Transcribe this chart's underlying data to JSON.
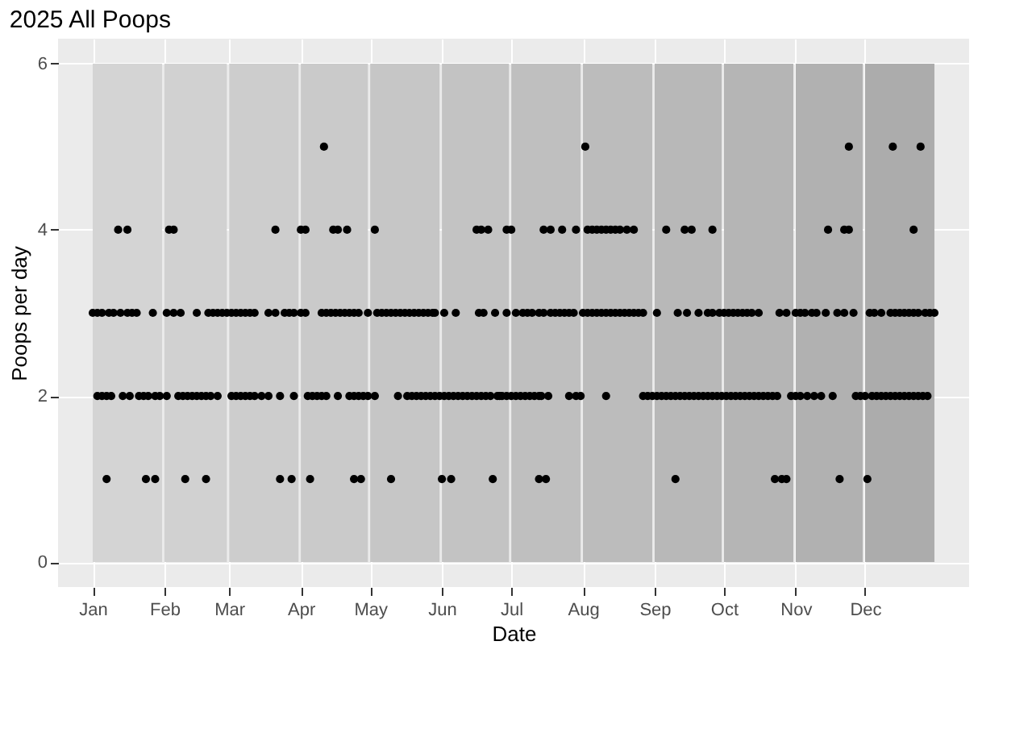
{
  "chart_data": {
    "type": "scatter",
    "title": "2025 All Poops",
    "xlabel": "Date",
    "ylabel": "Poops per day",
    "xlim": [
      "2024-12-17",
      "2026-01-15"
    ],
    "ylim": [
      -0.3,
      6.3
    ],
    "yticks": [
      0,
      2,
      4,
      6
    ],
    "xticks": [
      {
        "value": "2025-01-01",
        "label": "Jan"
      },
      {
        "value": "2025-02-01",
        "label": "Feb"
      },
      {
        "value": "2025-03-01",
        "label": "Mar"
      },
      {
        "value": "2025-04-01",
        "label": "Apr"
      },
      {
        "value": "2025-05-01",
        "label": "May"
      },
      {
        "value": "2025-06-01",
        "label": "Jun"
      },
      {
        "value": "2025-07-01",
        "label": "Jul"
      },
      {
        "value": "2025-08-01",
        "label": "Aug"
      },
      {
        "value": "2025-09-01",
        "label": "Sep"
      },
      {
        "value": "2025-10-01",
        "label": "Oct"
      },
      {
        "value": "2025-11-01",
        "label": "Nov"
      },
      {
        "value": "2025-12-01",
        "label": "Dec"
      }
    ],
    "grid": true,
    "marker": "circle",
    "bands": [
      {
        "axis": "x",
        "from": "2025-01-01",
        "to": "2025-01-31",
        "color": "#d4d4d4"
      },
      {
        "axis": "x",
        "from": "2025-02-01",
        "to": "2025-02-28",
        "color": "#d1d1d1"
      },
      {
        "axis": "x",
        "from": "2025-03-01",
        "to": "2025-03-31",
        "color": "#cdcdcd"
      },
      {
        "axis": "x",
        "from": "2025-04-01",
        "to": "2025-04-30",
        "color": "#cacaca"
      },
      {
        "axis": "x",
        "from": "2025-05-01",
        "to": "2025-05-31",
        "color": "#c6c6c6"
      },
      {
        "axis": "x",
        "from": "2025-06-01",
        "to": "2025-06-30",
        "color": "#c3c3c3"
      },
      {
        "axis": "x",
        "from": "2025-07-01",
        "to": "2025-07-31",
        "color": "#bfbfbf"
      },
      {
        "axis": "x",
        "from": "2025-08-01",
        "to": "2025-08-31",
        "color": "#bcbcbc"
      },
      {
        "axis": "x",
        "from": "2025-09-01",
        "to": "2025-09-30",
        "color": "#b8b8b8"
      },
      {
        "axis": "x",
        "from": "2025-10-01",
        "to": "2025-10-31",
        "color": "#b5b5b5"
      },
      {
        "axis": "x",
        "from": "2025-11-01",
        "to": "2025-11-30",
        "color": "#b1b1b1"
      },
      {
        "axis": "x",
        "from": "2025-12-01",
        "to": "2025-12-31",
        "color": "#acacac"
      }
    ],
    "series": [
      {
        "color": "#000000",
        "x": [
          "2025-04-11",
          "2025-08-02",
          "2025-11-24",
          "2025-12-13",
          "2025-12-25"
        ],
        "values": [
          5,
          5,
          5,
          5,
          5
        ]
      },
      {
        "color": "#000000",
        "x": [
          "2025-01-12",
          "2025-01-16",
          "2025-02-03",
          "2025-02-05",
          "2025-03-21",
          "2025-04-01",
          "2025-04-03",
          "2025-04-15",
          "2025-04-17",
          "2025-04-21",
          "2025-05-03",
          "2025-06-16",
          "2025-06-18",
          "2025-06-21",
          "2025-06-29",
          "2025-07-01",
          "2025-07-15",
          "2025-07-18",
          "2025-07-23",
          "2025-07-29",
          "2025-08-03",
          "2025-08-05",
          "2025-08-07",
          "2025-08-09",
          "2025-08-11",
          "2025-08-13",
          "2025-08-15",
          "2025-08-17",
          "2025-08-20",
          "2025-08-23",
          "2025-09-06",
          "2025-09-14",
          "2025-09-17",
          "2025-09-26",
          "2025-11-15",
          "2025-11-22",
          "2025-11-24",
          "2025-12-22"
        ],
        "values": [
          4,
          4,
          4,
          4,
          4,
          4,
          4,
          4,
          4,
          4,
          4,
          4,
          4,
          4,
          4,
          4,
          4,
          4,
          4,
          4,
          4,
          4,
          4,
          4,
          4,
          4,
          4,
          4,
          4,
          4,
          4,
          4,
          4,
          4,
          4,
          4,
          4,
          4
        ]
      },
      {
        "color": "#000000",
        "x": [
          "2025-01-01",
          "2025-01-03",
          "2025-01-05",
          "2025-01-08",
          "2025-01-10",
          "2025-01-13",
          "2025-01-16",
          "2025-01-18",
          "2025-01-20",
          "2025-01-27",
          "2025-02-02",
          "2025-02-05",
          "2025-02-08",
          "2025-02-15",
          "2025-02-20",
          "2025-02-22",
          "2025-02-24",
          "2025-02-26",
          "2025-02-28",
          "2025-03-02",
          "2025-03-04",
          "2025-03-06",
          "2025-03-08",
          "2025-03-10",
          "2025-03-12",
          "2025-03-18",
          "2025-03-21",
          "2025-03-25",
          "2025-03-27",
          "2025-03-29",
          "2025-04-01",
          "2025-04-03",
          "2025-04-10",
          "2025-04-12",
          "2025-04-14",
          "2025-04-16",
          "2025-04-18",
          "2025-04-20",
          "2025-04-22",
          "2025-04-24",
          "2025-04-26",
          "2025-04-30",
          "2025-05-04",
          "2025-05-06",
          "2025-05-08",
          "2025-05-10",
          "2025-05-12",
          "2025-05-14",
          "2025-05-16",
          "2025-05-18",
          "2025-05-20",
          "2025-05-22",
          "2025-05-24",
          "2025-05-26",
          "2025-05-28",
          "2025-05-29",
          "2025-06-02",
          "2025-06-07",
          "2025-06-17",
          "2025-06-19",
          "2025-06-24",
          "2025-06-29",
          "2025-07-03",
          "2025-07-06",
          "2025-07-08",
          "2025-07-10",
          "2025-07-13",
          "2025-07-15",
          "2025-07-18",
          "2025-07-20",
          "2025-07-22",
          "2025-07-24",
          "2025-07-26",
          "2025-07-28",
          "2025-08-01",
          "2025-08-03",
          "2025-08-05",
          "2025-08-07",
          "2025-08-09",
          "2025-08-11",
          "2025-08-13",
          "2025-08-15",
          "2025-08-17",
          "2025-08-19",
          "2025-08-21",
          "2025-08-23",
          "2025-08-25",
          "2025-08-27",
          "2025-09-02",
          "2025-09-11",
          "2025-09-15",
          "2025-09-20",
          "2025-09-24",
          "2025-09-26",
          "2025-09-29",
          "2025-10-01",
          "2025-10-03",
          "2025-10-05",
          "2025-10-07",
          "2025-10-09",
          "2025-10-11",
          "2025-10-13",
          "2025-10-16",
          "2025-10-25",
          "2025-10-28",
          "2025-11-01",
          "2025-11-03",
          "2025-11-05",
          "2025-11-08",
          "2025-11-10",
          "2025-11-14",
          "2025-11-19",
          "2025-11-22",
          "2025-11-26",
          "2025-12-03",
          "2025-12-05",
          "2025-12-08",
          "2025-12-12",
          "2025-12-14",
          "2025-12-16",
          "2025-12-18",
          "2025-12-20",
          "2025-12-22",
          "2025-12-24",
          "2025-12-27",
          "2025-12-29",
          "2025-12-31"
        ],
        "values": [
          3,
          3,
          3,
          3,
          3,
          3,
          3,
          3,
          3,
          3,
          3,
          3,
          3,
          3,
          3,
          3,
          3,
          3,
          3,
          3,
          3,
          3,
          3,
          3,
          3,
          3,
          3,
          3,
          3,
          3,
          3,
          3,
          3,
          3,
          3,
          3,
          3,
          3,
          3,
          3,
          3,
          3,
          3,
          3,
          3,
          3,
          3,
          3,
          3,
          3,
          3,
          3,
          3,
          3,
          3,
          3,
          3,
          3,
          3,
          3,
          3,
          3,
          3,
          3,
          3,
          3,
          3,
          3,
          3,
          3,
          3,
          3,
          3,
          3,
          3,
          3,
          3,
          3,
          3,
          3,
          3,
          3,
          3,
          3,
          3,
          3,
          3,
          3,
          3,
          3,
          3,
          3,
          3,
          3,
          3,
          3,
          3,
          3,
          3,
          3,
          3,
          3,
          3,
          3,
          3,
          3,
          3,
          3,
          3,
          3,
          3,
          3,
          3,
          3,
          3,
          3,
          3,
          3,
          3,
          3,
          3,
          3,
          3,
          3,
          3,
          3,
          3
        ]
      },
      {
        "color": "#000000",
        "x": [
          "2025-01-03",
          "2025-01-05",
          "2025-01-07",
          "2025-01-09",
          "2025-01-14",
          "2025-01-17",
          "2025-01-21",
          "2025-01-23",
          "2025-01-25",
          "2025-01-28",
          "2025-01-30",
          "2025-02-02",
          "2025-02-07",
          "2025-02-09",
          "2025-02-11",
          "2025-02-13",
          "2025-02-15",
          "2025-02-17",
          "2025-02-19",
          "2025-02-21",
          "2025-02-24",
          "2025-03-02",
          "2025-03-04",
          "2025-03-06",
          "2025-03-08",
          "2025-03-10",
          "2025-03-12",
          "2025-03-15",
          "2025-03-18",
          "2025-03-23",
          "2025-03-29",
          "2025-04-04",
          "2025-04-06",
          "2025-04-08",
          "2025-04-10",
          "2025-04-12",
          "2025-04-17",
          "2025-04-22",
          "2025-04-24",
          "2025-04-26",
          "2025-04-28",
          "2025-04-30",
          "2025-05-03",
          "2025-05-13",
          "2025-05-17",
          "2025-05-19",
          "2025-05-21",
          "2025-05-23",
          "2025-05-25",
          "2025-05-27",
          "2025-05-29",
          "2025-05-31",
          "2025-06-02",
          "2025-06-04",
          "2025-06-06",
          "2025-06-08",
          "2025-06-10",
          "2025-06-12",
          "2025-06-14",
          "2025-06-16",
          "2025-06-18",
          "2025-06-20",
          "2025-06-22",
          "2025-06-25",
          "2025-06-26",
          "2025-06-27",
          "2025-06-29",
          "2025-07-01",
          "2025-07-03",
          "2025-07-05",
          "2025-07-07",
          "2025-07-09",
          "2025-07-11",
          "2025-07-13",
          "2025-07-14",
          "2025-07-17",
          "2025-07-26",
          "2025-07-29",
          "2025-07-31",
          "2025-08-11",
          "2025-08-27",
          "2025-08-29",
          "2025-08-31",
          "2025-09-02",
          "2025-09-04",
          "2025-09-06",
          "2025-09-08",
          "2025-09-10",
          "2025-09-12",
          "2025-09-14",
          "2025-09-16",
          "2025-09-18",
          "2025-09-20",
          "2025-09-22",
          "2025-09-24",
          "2025-09-26",
          "2025-09-28",
          "2025-09-30",
          "2025-10-02",
          "2025-10-04",
          "2025-10-06",
          "2025-10-08",
          "2025-10-10",
          "2025-10-12",
          "2025-10-14",
          "2025-10-16",
          "2025-10-18",
          "2025-10-20",
          "2025-10-22",
          "2025-10-24",
          "2025-10-30",
          "2025-11-01",
          "2025-11-03",
          "2025-11-06",
          "2025-11-09",
          "2025-11-12",
          "2025-11-17",
          "2025-11-27",
          "2025-11-29",
          "2025-12-01",
          "2025-12-04",
          "2025-12-06",
          "2025-12-08",
          "2025-12-10",
          "2025-12-12",
          "2025-12-14",
          "2025-12-16",
          "2025-12-18",
          "2025-12-20",
          "2025-12-22",
          "2025-12-24",
          "2025-12-26",
          "2025-12-28"
        ],
        "values": [
          2,
          2,
          2,
          2,
          2,
          2,
          2,
          2,
          2,
          2,
          2,
          2,
          2,
          2,
          2,
          2,
          2,
          2,
          2,
          2,
          2,
          2,
          2,
          2,
          2,
          2,
          2,
          2,
          2,
          2,
          2,
          2,
          2,
          2,
          2,
          2,
          2,
          2,
          2,
          2,
          2,
          2,
          2,
          2,
          2,
          2,
          2,
          2,
          2,
          2,
          2,
          2,
          2,
          2,
          2,
          2,
          2,
          2,
          2,
          2,
          2,
          2,
          2,
          2,
          2,
          2,
          2,
          2,
          2,
          2,
          2,
          2,
          2,
          2,
          2,
          2,
          2,
          2,
          2,
          2,
          2,
          2,
          2,
          2,
          2,
          2,
          2,
          2,
          2,
          2,
          2,
          2,
          2,
          2,
          2,
          2,
          2,
          2,
          2,
          2,
          2,
          2,
          2,
          2,
          2,
          2,
          2,
          2,
          2,
          2,
          2,
          2,
          2,
          2,
          2,
          2,
          2,
          2,
          2,
          2,
          2,
          2,
          2,
          2,
          2,
          2,
          2,
          2,
          2,
          2,
          2,
          2,
          2
        ]
      },
      {
        "color": "#000000",
        "x": [
          "2025-01-07",
          "2025-01-24",
          "2025-01-28",
          "2025-02-10",
          "2025-02-19",
          "2025-03-23",
          "2025-03-28",
          "2025-04-05",
          "2025-04-24",
          "2025-04-27",
          "2025-05-10",
          "2025-06-01",
          "2025-06-05",
          "2025-06-23",
          "2025-07-13",
          "2025-07-16",
          "2025-09-10",
          "2025-10-23",
          "2025-10-26",
          "2025-10-28",
          "2025-11-20",
          "2025-12-02"
        ],
        "values": [
          1,
          1,
          1,
          1,
          1,
          1,
          1,
          1,
          1,
          1,
          1,
          1,
          1,
          1,
          1,
          1,
          1,
          1,
          1,
          1,
          1,
          1
        ]
      }
    ]
  }
}
